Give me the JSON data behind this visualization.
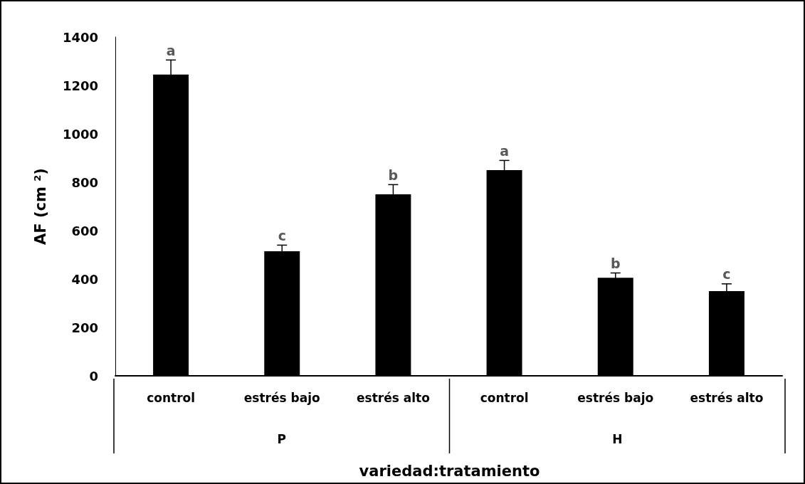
{
  "chart_data": {
    "type": "bar",
    "xlabel": "variedad:tratamiento",
    "ylabel": "AF (cm $^{2}$)",
    "categories": [
      "control",
      "estrés bajo",
      "estrés alto",
      "control",
      "estrés bajo",
      "estrés alto"
    ],
    "values": [
      1245,
      515,
      750,
      850,
      405,
      350
    ],
    "errors": [
      60,
      25,
      40,
      40,
      20,
      30
    ],
    "value_labels": [
      "a",
      "c",
      "b",
      "a",
      "b",
      "c"
    ],
    "colors": [
      "#000000",
      "#000000",
      "#000000",
      "#000000",
      "#000000",
      "#000000"
    ],
    "annotations": [
      "P",
      "H"
    ],
    "ylim": [
      0,
      1400
    ],
    "yticks": [
      0,
      200,
      400,
      600,
      800,
      1000,
      1200,
      1400
    ],
    "grid": false
  }
}
